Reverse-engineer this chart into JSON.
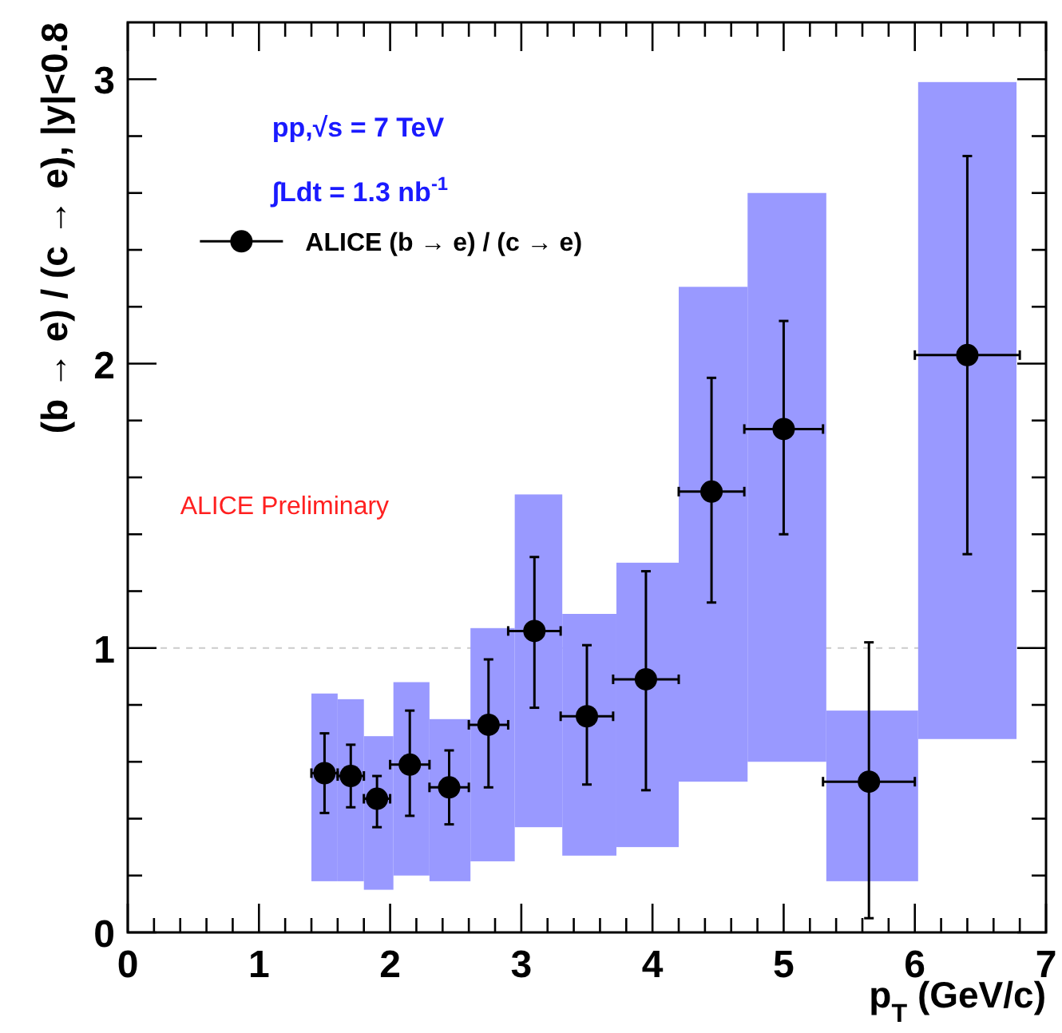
{
  "chart_data": {
    "type": "scatter",
    "xlabel": "p$_{T}$ (GeV/c)",
    "ylabel": "(b → e) / (c → e), |y|<0.8",
    "xlim": [
      0,
      7
    ],
    "ylim": [
      0,
      3.2
    ],
    "xticks": [
      0,
      {
        "value": 0.2,
        "label": null
      },
      {
        "value": 0.4,
        "label": null
      },
      {
        "value": 0.6,
        "label": null
      },
      {
        "value": 0.8,
        "label": null
      },
      1,
      {
        "value": 1.2,
        "label": null
      },
      {
        "value": 1.4,
        "label": null
      },
      {
        "value": 1.6,
        "label": null
      },
      {
        "value": 1.8,
        "label": null
      },
      2,
      {
        "value": 2.2,
        "label": null
      },
      {
        "value": 2.4,
        "label": null
      },
      {
        "value": 2.6,
        "label": null
      },
      {
        "value": 2.8,
        "label": null
      },
      3,
      {
        "value": 3.2,
        "label": null
      },
      {
        "value": 3.4,
        "label": null
      },
      {
        "value": 3.6,
        "label": null
      },
      {
        "value": 3.8,
        "label": null
      },
      4,
      {
        "value": 4.2,
        "label": null
      },
      {
        "value": 4.4,
        "label": null
      },
      {
        "value": 4.6,
        "label": null
      },
      {
        "value": 4.8,
        "label": null
      },
      5,
      {
        "value": 5.2,
        "label": null
      },
      {
        "value": 5.4,
        "label": null
      },
      {
        "value": 5.6,
        "label": null
      },
      {
        "value": 5.8,
        "label": null
      },
      6,
      {
        "value": 6.2,
        "label": null
      },
      {
        "value": 6.4,
        "label": null
      },
      {
        "value": 6.6,
        "label": null
      },
      {
        "value": 6.8,
        "label": null
      },
      7
    ],
    "yticks": [
      0,
      {
        "value": 0.2,
        "label": null
      },
      {
        "value": 0.4,
        "label": null
      },
      {
        "value": 0.6,
        "label": null
      },
      {
        "value": 0.8,
        "label": null
      },
      1,
      {
        "value": 1.2,
        "label": null
      },
      {
        "value": 1.4,
        "label": null
      },
      {
        "value": 1.6,
        "label": null
      },
      {
        "value": 1.8,
        "label": null
      },
      2,
      {
        "value": 2.2,
        "label": null
      },
      {
        "value": 2.4,
        "label": null
      },
      {
        "value": 2.6,
        "label": null
      },
      {
        "value": 2.8,
        "label": null
      },
      3
    ],
    "grid": false,
    "legend": "top left",
    "marker": "circle",
    "ref_lines": [
      {
        "axis": "y",
        "value": 1,
        "color": "#cccccc",
        "line_style": "dashed"
      }
    ],
    "annotations": [
      "pp,√s = 7 TeV",
      "∫Ldt = 1.3 nb$^{-1}$",
      "ALICE Preliminary"
    ],
    "series": [
      {
        "type": "bar",
        "color": "#9999ff",
        "x": [
          1.5,
          1.7,
          1.9,
          2.15,
          2.45,
          2.775,
          3.125,
          3.5,
          3.95,
          4.45,
          5.0,
          5.65,
          6.4
        ],
        "base": [
          0.18,
          0.18,
          0.15,
          0.2,
          0.18,
          0.25,
          0.37,
          0.27,
          0.3,
          0.53,
          0.6,
          0.18,
          0.68
        ],
        "values": [
          0.66,
          0.64,
          0.54,
          0.68,
          0.57,
          0.82,
          1.17,
          0.85,
          1.0,
          1.74,
          2.0,
          0.6,
          2.31
        ]
      },
      {
        "name": "ALICE (b → e) / (c → e)",
        "color": "#000000",
        "x": [
          1.5,
          1.7,
          1.9,
          2.15,
          2.45,
          2.75,
          3.1,
          3.5,
          3.95,
          4.45,
          5.0,
          5.65,
          6.4
        ],
        "values": [
          0.56,
          0.55,
          0.47,
          0.59,
          0.51,
          0.73,
          1.06,
          0.76,
          0.89,
          1.55,
          1.77,
          0.53,
          2.03
        ],
        "errors": [
          [
            0.42,
            0.7
          ],
          [
            0.44,
            0.66
          ],
          [
            0.37,
            0.55
          ],
          [
            0.41,
            0.78
          ],
          [
            0.38,
            0.64
          ],
          [
            0.51,
            0.96
          ],
          [
            0.79,
            1.32
          ],
          [
            0.52,
            1.01
          ],
          [
            0.5,
            1.27
          ],
          [
            1.16,
            1.95
          ],
          [
            1.4,
            2.15
          ],
          [
            0.05,
            1.02
          ],
          [
            1.33,
            2.73
          ]
        ],
        "xerrors": [
          [
            1.4,
            1.6
          ],
          [
            1.6,
            1.8
          ],
          [
            1.8,
            2.0
          ],
          [
            2.0,
            2.3
          ],
          [
            2.3,
            2.6
          ],
          [
            2.6,
            2.9
          ],
          [
            2.9,
            3.3
          ],
          [
            3.3,
            3.7
          ],
          [
            3.7,
            4.2
          ],
          [
            4.2,
            4.7
          ],
          [
            4.7,
            5.3
          ],
          [
            5.3,
            6.0
          ],
          [
            6.0,
            6.8
          ]
        ]
      }
    ]
  }
}
